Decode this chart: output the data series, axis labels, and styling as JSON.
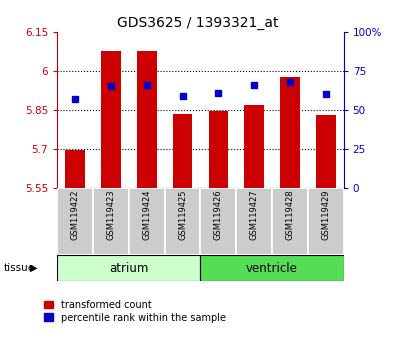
{
  "title": "GDS3625 / 1393321_at",
  "samples": [
    "GSM119422",
    "GSM119423",
    "GSM119424",
    "GSM119425",
    "GSM119426",
    "GSM119427",
    "GSM119428",
    "GSM119429"
  ],
  "transformed_count": [
    5.695,
    6.075,
    6.075,
    5.835,
    5.845,
    5.87,
    5.975,
    5.83
  ],
  "percentile_rank": [
    57,
    65,
    66,
    59,
    61,
    66,
    68,
    60
  ],
  "bar_bottom": 5.55,
  "ylim_left": [
    5.55,
    6.15
  ],
  "ylim_right": [
    0,
    100
  ],
  "yticks_left": [
    5.55,
    5.7,
    5.85,
    6.0,
    6.15
  ],
  "ytick_labels_left": [
    "5.55",
    "5.7",
    "5.85",
    "6",
    "6.15"
  ],
  "yticks_right": [
    0,
    25,
    50,
    75,
    100
  ],
  "ytick_labels_right": [
    "0",
    "25",
    "50",
    "75",
    "100%"
  ],
  "bar_color": "#cc0000",
  "dot_color": "#0000cc",
  "atrium_color": "#ccffcc",
  "ventricle_color": "#55dd55",
  "tissue_label": "tissue",
  "atrium_label": "atrium",
  "ventricle_label": "ventricle",
  "legend_red_label": "transformed count",
  "legend_blue_label": "percentile rank within the sample",
  "tick_color_left": "#cc0000",
  "tick_color_right": "#0000cc",
  "label_box_color": "#cccccc",
  "grid_yticks": [
    5.7,
    5.85,
    6.0
  ]
}
